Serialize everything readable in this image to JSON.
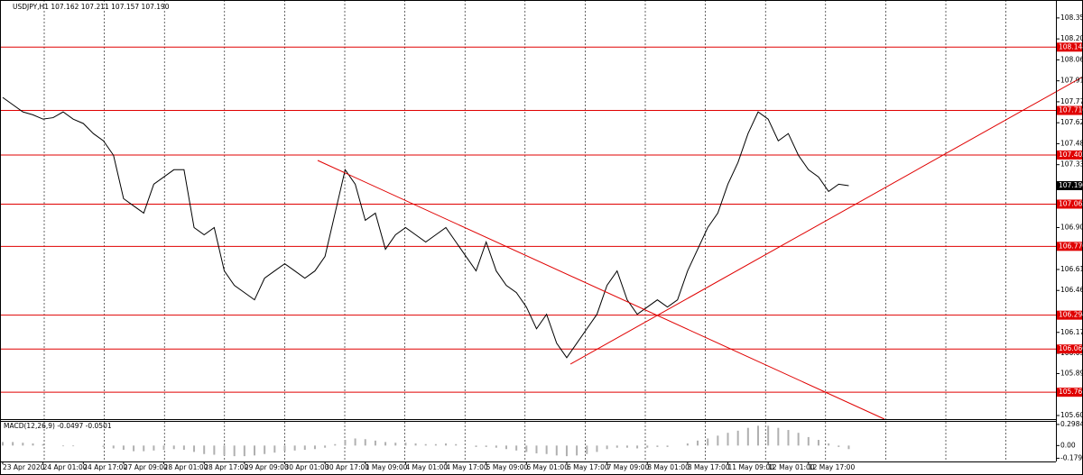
{
  "chart_data": [
    {
      "type": "line",
      "title": "USDJPY,H1  107.162 107.211 107.157 107.190",
      "categories": [
        "23 Apr 2020",
        null,
        null,
        null,
        "24 Apr 01:00",
        null,
        null,
        null,
        "24 Apr 17:00",
        null,
        null,
        null,
        "27 Apr 09:00",
        null,
        null,
        null,
        "28 Apr 01:00",
        null,
        null,
        null,
        "28 Apr 17:00",
        null,
        null,
        null,
        "29 Apr 09:00",
        null,
        null,
        null,
        "30 Apr 01:00",
        null,
        null,
        null,
        "30 Apr 17:00",
        null,
        null,
        null,
        "1 May 09:00",
        null,
        null,
        null,
        "4 May 01:00",
        null,
        null,
        null,
        "4 May 17:00",
        null,
        null,
        null,
        "5 May 09:00",
        null,
        null,
        null,
        "6 May 01:00",
        null,
        null,
        null,
        "6 May 17:00",
        null,
        null,
        null,
        "7 May 09:00",
        null,
        null,
        null,
        "8 May 01:00",
        null,
        null,
        null,
        "8 May 17:00",
        null,
        null,
        null,
        "11 May 09:00",
        null,
        null,
        null,
        "12 May 01:00",
        null,
        null,
        null,
        "12 May 17:00",
        null,
        null,
        null,
        null
      ],
      "values": [
        107.8,
        107.75,
        107.7,
        107.68,
        107.65,
        107.66,
        107.7,
        107.65,
        107.62,
        107.55,
        107.5,
        107.4,
        107.1,
        107.05,
        107.0,
        107.2,
        107.25,
        107.3,
        107.3,
        106.9,
        106.85,
        106.9,
        106.6,
        106.5,
        106.45,
        106.4,
        106.55,
        106.6,
        106.65,
        106.6,
        106.55,
        106.6,
        106.7,
        107.0,
        107.3,
        107.2,
        106.95,
        107.0,
        106.75,
        106.85,
        106.9,
        106.85,
        106.8,
        106.85,
        106.9,
        106.8,
        106.7,
        106.6,
        106.8,
        106.6,
        106.5,
        106.45,
        106.35,
        106.2,
        106.3,
        106.1,
        106.0,
        106.1,
        106.2,
        106.3,
        106.5,
        106.6,
        106.4,
        106.3,
        106.35,
        106.4,
        106.35,
        106.4,
        106.6,
        106.75,
        106.9,
        107.0,
        107.2,
        107.35,
        107.55,
        107.7,
        107.65,
        107.5,
        107.55,
        107.4,
        107.3,
        107.25,
        107.15,
        107.2,
        107.19
      ],
      "color": "#000000",
      "ylim": [
        105.575,
        108.474
      ],
      "yticks": [
        {
          "value": 108.35,
          "label": "108.350"
        },
        108.205,
        {
          "value": 108.06,
          "label": "108.060"
        },
        107.915,
        {
          "value": 107.77,
          "label": "107.770"
        },
        107.625,
        {
          "value": 107.48,
          "label": "107.480"
        },
        107.335,
        {
          "value": 106.9,
          "label": "106.900"
        },
        {
          "value": 106.61,
          "label": "106.610"
        },
        106.465,
        106.175,
        {
          "value": 106.03,
          "label": "106.030"
        },
        {
          "value": 105.89,
          "label": "105.890"
        },
        {
          "value": 105.6,
          "label": "105.600"
        }
      ],
      "levels": [
        108.148,
        {
          "value": 107.71,
          "label": "107.710"
        },
        107.402,
        107.062,
        {
          "value": 106.77,
          "label": "106.770"
        },
        106.294,
        {
          "value": 106.06,
          "label": "106.060"
        },
        105.761
      ],
      "level_color": "#e00000",
      "current_price": {
        "value": 107.19,
        "label": "107.190"
      }
    },
    {
      "type": "bar",
      "title": "MACD(12,26,9) -0.0497 -0.0501",
      "values": [
        0.05,
        0.05,
        0.04,
        0.03,
        0.02,
        0.0,
        -0.01,
        -0.01,
        0.0,
        0.0,
        -0.02,
        -0.04,
        -0.06,
        -0.08,
        -0.08,
        -0.07,
        -0.06,
        -0.05,
        -0.06,
        -0.09,
        -0.12,
        -0.13,
        -0.14,
        -0.15,
        -0.15,
        -0.14,
        -0.12,
        -0.1,
        -0.08,
        -0.07,
        -0.06,
        -0.05,
        -0.03,
        0.02,
        0.08,
        0.1,
        0.09,
        0.07,
        0.05,
        0.04,
        0.04,
        0.03,
        0.02,
        0.02,
        0.03,
        0.02,
        0.0,
        -0.02,
        -0.02,
        -0.03,
        -0.05,
        -0.07,
        -0.09,
        -0.11,
        -0.12,
        -0.14,
        -0.15,
        -0.14,
        -0.12,
        -0.09,
        -0.05,
        -0.03,
        -0.03,
        -0.04,
        -0.03,
        -0.02,
        -0.02,
        0.0,
        0.03,
        0.07,
        0.1,
        0.14,
        0.18,
        0.21,
        0.25,
        0.28,
        0.28,
        0.25,
        0.22,
        0.18,
        0.12,
        0.08,
        0.03,
        -0.02,
        -0.05
      ],
      "color": "#b0b0b0",
      "ylim": [
        -0.225,
        0.348
      ],
      "yticks": [
        0.2984,
        {
          "value": 0,
          "label": "0.00"
        },
        -0.1793
      ]
    }
  ]
}
